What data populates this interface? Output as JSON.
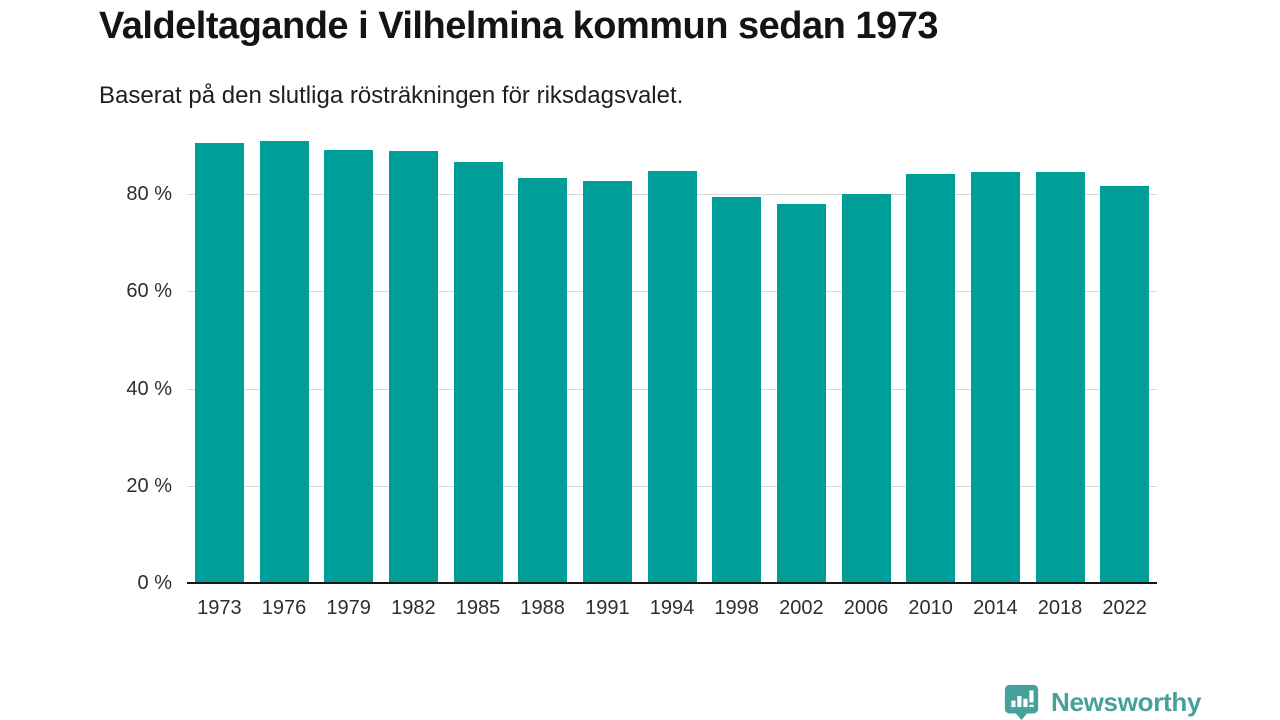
{
  "header": {
    "title": "Valdeltagande i Vilhelmina kommun sedan 1973",
    "subtitle": "Baserat på den slutliga rösträkningen för riksdagsvalet."
  },
  "chart_data": {
    "type": "bar",
    "title": "Valdeltagande i Vilhelmina kommun sedan 1973",
    "subtitle": "Baserat på den slutliga rösträkningen för riksdagsvalet.",
    "categories": [
      "1973",
      "1976",
      "1979",
      "1982",
      "1985",
      "1988",
      "1991",
      "1994",
      "1998",
      "2002",
      "2006",
      "2010",
      "2014",
      "2018",
      "2022"
    ],
    "values": [
      90.6,
      90.9,
      89.0,
      88.9,
      86.6,
      83.4,
      82.7,
      84.7,
      79.3,
      78.0,
      80.1,
      84.2,
      84.5,
      84.5,
      81.7
    ],
    "unit": "%",
    "yticks": [
      0,
      20,
      40,
      60,
      80
    ],
    "ytick_suffix": " %",
    "ylim": [
      0,
      92
    ],
    "xlabel": "",
    "ylabel": "",
    "grid": true,
    "legend": "none",
    "bar_color": "#009E98",
    "gridline_color": "#d9d9d9",
    "axis_color": "#161616"
  },
  "footer": {
    "brand": "Newsworthy",
    "brand_color": "#47A19B",
    "logo_icon": "newsworthy-speech-bubble-bar-chart-icon"
  }
}
